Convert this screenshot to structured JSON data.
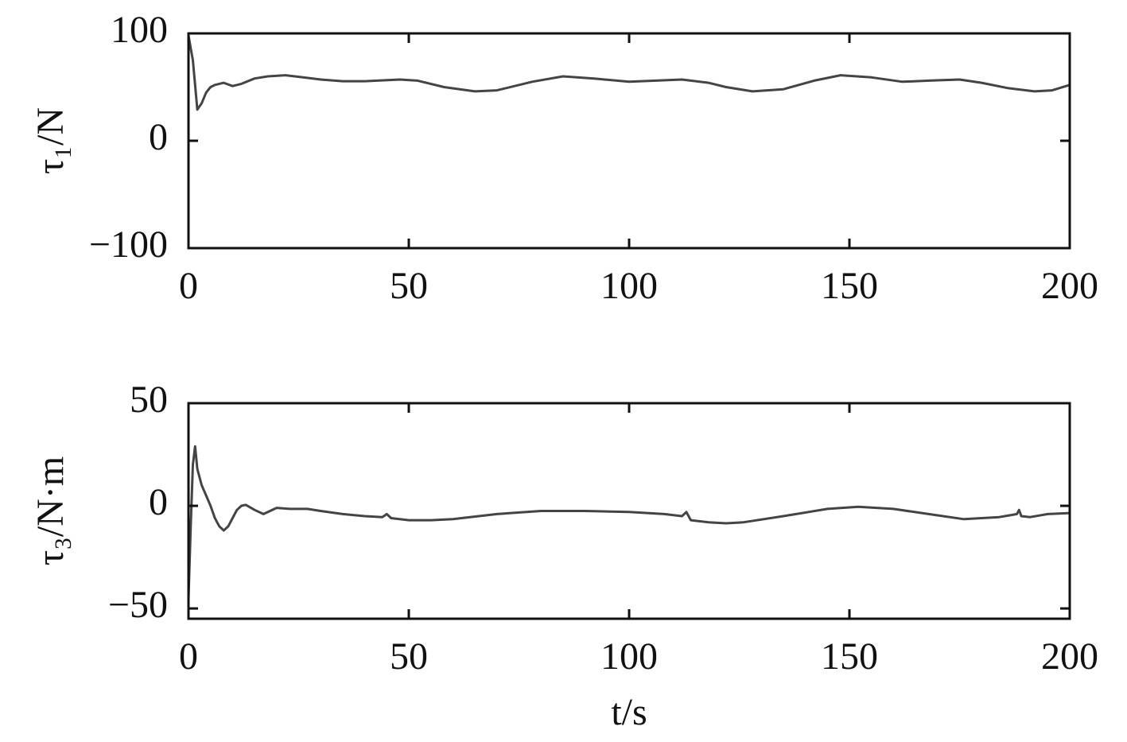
{
  "chart_data": [
    {
      "type": "line",
      "ylabel": "τ₁/N",
      "xlim": [
        0,
        200
      ],
      "xticks": [
        0,
        50,
        100,
        150,
        200
      ],
      "ylim": [
        -100,
        100
      ],
      "yticks": [
        {
          "value": -100,
          "label": "−100"
        },
        0,
        100
      ],
      "series": [
        {
          "color": "#444444",
          "x": [
            0,
            1,
            2,
            3,
            4,
            5,
            6,
            8,
            10,
            12,
            15,
            18,
            22,
            26,
            30,
            35,
            40,
            48,
            52,
            58,
            65,
            70,
            78,
            85,
            92,
            100,
            106,
            112,
            118,
            122,
            128,
            135,
            142,
            148,
            155,
            162,
            168,
            175,
            180,
            186,
            192,
            196,
            200
          ],
          "values": [
            98,
            75,
            29,
            35,
            45,
            50,
            52,
            54,
            51,
            53,
            58,
            60,
            61,
            59,
            57,
            55.5,
            55.5,
            57,
            56,
            50,
            46,
            47,
            55,
            60,
            58,
            55,
            56,
            57,
            54,
            50,
            46,
            48,
            56,
            61,
            59,
            55,
            56,
            57,
            54,
            49,
            46,
            47,
            52
          ]
        }
      ]
    },
    {
      "type": "line",
      "ylabel": "τ₃/N·m",
      "xlabel": "t/s",
      "xlim": [
        0,
        200
      ],
      "xticks": [
        0,
        50,
        100,
        150,
        200
      ],
      "ylim": [
        -55,
        50
      ],
      "yticks": [
        {
          "value": -50,
          "label": "−50"
        },
        0,
        50
      ],
      "series": [
        {
          "color": "#444444",
          "x": [
            0,
            0.5,
            1,
            1.5,
            2,
            3,
            4,
            5,
            6,
            7,
            8,
            9,
            10,
            11,
            12,
            13,
            15,
            17,
            20,
            23,
            27,
            30,
            35,
            40,
            44,
            45,
            46,
            50,
            55,
            60,
            70,
            80,
            90,
            100,
            108,
            112,
            113,
            114,
            118,
            122,
            126,
            135,
            145,
            152,
            160,
            168,
            176,
            184,
            188,
            188.5,
            189,
            191,
            195,
            200
          ],
          "values": [
            -45,
            -10,
            20,
            29,
            18,
            10,
            5,
            0,
            -6,
            -10,
            -12,
            -10,
            -6,
            -2,
            0,
            0.5,
            -2,
            -4,
            -1,
            -1.5,
            -1.5,
            -2.5,
            -4,
            -5,
            -5.5,
            -4,
            -6,
            -7,
            -7,
            -6.5,
            -4,
            -2.5,
            -2.5,
            -3,
            -4,
            -5,
            -3,
            -7,
            -8,
            -8.5,
            -8,
            -5,
            -1.5,
            -0.5,
            -1.5,
            -4,
            -6.5,
            -5.5,
            -4,
            -2,
            -5,
            -5.5,
            -4,
            -3.5
          ]
        }
      ]
    }
  ]
}
